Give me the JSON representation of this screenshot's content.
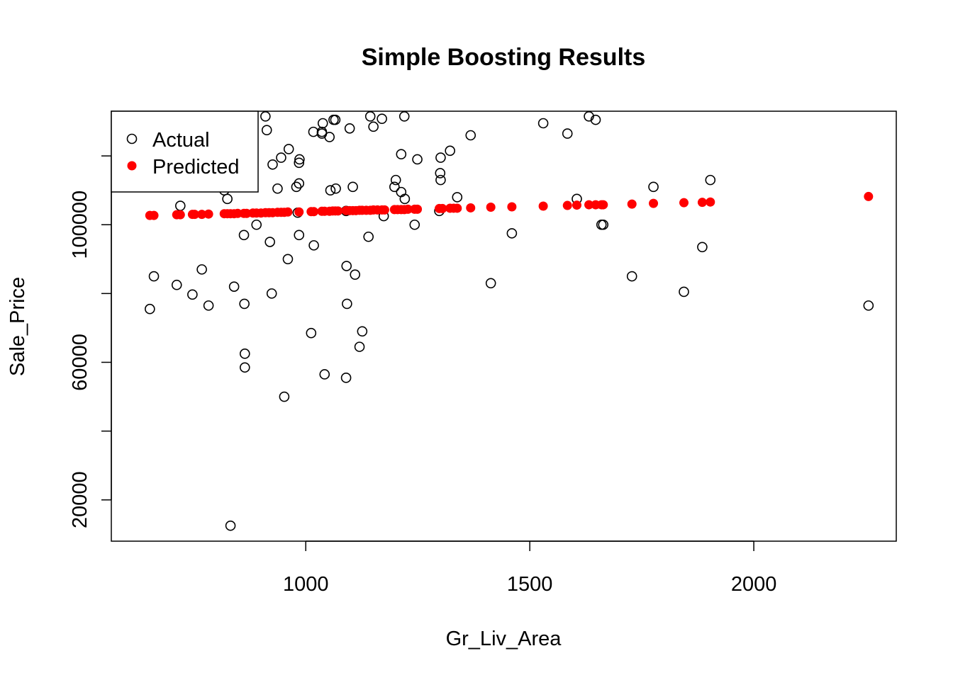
{
  "chart_data": {
    "type": "scatter",
    "title": "Simple Boosting Results",
    "xlabel": "Gr_Liv_Area",
    "ylabel": "Sale_Price",
    "xlim": [
      566,
      2318
    ],
    "ylim": [
      8000,
      133000
    ],
    "x_ticks": [
      1000,
      1500,
      2000
    ],
    "x_tick_labels": [
      "1000",
      "1500",
      "2000"
    ],
    "y_ticks": [
      20000,
      40000,
      60000,
      80000,
      100000,
      120000
    ],
    "y_tick_labels": [
      "20000",
      "",
      "60000",
      "",
      "100000",
      ""
    ],
    "grid": false,
    "legend": {
      "placement": "top-left",
      "entries": [
        {
          "label": "Actual",
          "marker": "open-circle",
          "color": "#000000"
        },
        {
          "label": "Predicted",
          "marker": "filled-circle",
          "color": "#ff0000"
        }
      ]
    },
    "series": [
      {
        "name": "Actual",
        "marker": "open-circle",
        "color": "#000000",
        "points": [
          [
            832,
            12500
          ],
          [
            652,
            75500
          ],
          [
            661,
            85000
          ],
          [
            712,
            82500
          ],
          [
            720,
            105500
          ],
          [
            747,
            79700
          ],
          [
            768,
            87000
          ],
          [
            783,
            76500
          ],
          [
            818,
            110000
          ],
          [
            825,
            107500
          ],
          [
            840,
            82000
          ],
          [
            862,
            97000
          ],
          [
            863,
            77000
          ],
          [
            864,
            62500
          ],
          [
            864,
            58500
          ],
          [
            890,
            100000
          ],
          [
            910,
            131500
          ],
          [
            913,
            127500
          ],
          [
            920,
            95000
          ],
          [
            924,
            80000
          ],
          [
            926,
            117500
          ],
          [
            937,
            110500
          ],
          [
            945,
            119500
          ],
          [
            952,
            50000
          ],
          [
            960,
            90000
          ],
          [
            962,
            122000
          ],
          [
            979,
            111000
          ],
          [
            982,
            103500
          ],
          [
            985,
            97000
          ],
          [
            985,
            118000
          ],
          [
            985,
            112000
          ],
          [
            986,
            119000
          ],
          [
            1017,
            127000
          ],
          [
            1018,
            94000
          ],
          [
            1012,
            68500
          ],
          [
            1036,
            127000
          ],
          [
            1036,
            126500
          ],
          [
            1038,
            129500
          ],
          [
            1042,
            56500
          ],
          [
            1053,
            125500
          ],
          [
            1055,
            110000
          ],
          [
            1062,
            130500
          ],
          [
            1066,
            130500
          ],
          [
            1067,
            110500
          ],
          [
            1090,
            104000
          ],
          [
            1090,
            55500
          ],
          [
            1091,
            88000
          ],
          [
            1092,
            77000
          ],
          [
            1098,
            128000
          ],
          [
            1105,
            111000
          ],
          [
            1110,
            85500
          ],
          [
            1120,
            64500
          ],
          [
            1126,
            69000
          ],
          [
            1140,
            96500
          ],
          [
            1144,
            131500
          ],
          [
            1151,
            128500
          ],
          [
            1170,
            130800
          ],
          [
            1174,
            102500
          ],
          [
            1198,
            111000
          ],
          [
            1201,
            113000
          ],
          [
            1213,
            120500
          ],
          [
            1213,
            109500
          ],
          [
            1221,
            107500
          ],
          [
            1220,
            131500
          ],
          [
            1243,
            100000
          ],
          [
            1249,
            119000
          ],
          [
            1298,
            104000
          ],
          [
            1300,
            115000
          ],
          [
            1301,
            119500
          ],
          [
            1301,
            113000
          ],
          [
            1322,
            121500
          ],
          [
            1338,
            108000
          ],
          [
            1368,
            126000
          ],
          [
            1413,
            83000
          ],
          [
            1460,
            97500
          ],
          [
            1530,
            129500
          ],
          [
            1584,
            126500
          ],
          [
            1605,
            107500
          ],
          [
            1632,
            131500
          ],
          [
            1647,
            130500
          ],
          [
            1660,
            100000
          ],
          [
            1664,
            100000
          ],
          [
            1728,
            85000
          ],
          [
            1776,
            111000
          ],
          [
            1844,
            80500
          ],
          [
            1885,
            93500
          ],
          [
            1903,
            113000
          ],
          [
            2256,
            76500
          ]
        ]
      },
      {
        "name": "Predicted",
        "marker": "filled-circle",
        "color": "#ff0000",
        "points": [
          [
            652,
            102700
          ],
          [
            661,
            102700
          ],
          [
            712,
            102900
          ],
          [
            720,
            102900
          ],
          [
            747,
            103000
          ],
          [
            752,
            103000
          ],
          [
            768,
            103000
          ],
          [
            783,
            103100
          ],
          [
            818,
            103200
          ],
          [
            825,
            103200
          ],
          [
            832,
            103200
          ],
          [
            840,
            103200
          ],
          [
            848,
            103300
          ],
          [
            862,
            103300
          ],
          [
            868,
            103300
          ],
          [
            882,
            103400
          ],
          [
            890,
            103400
          ],
          [
            900,
            103400
          ],
          [
            910,
            103500
          ],
          [
            918,
            103500
          ],
          [
            926,
            103500
          ],
          [
            937,
            103600
          ],
          [
            945,
            103600
          ],
          [
            952,
            103600
          ],
          [
            960,
            103700
          ],
          [
            985,
            103700
          ],
          [
            1012,
            103800
          ],
          [
            1018,
            103800
          ],
          [
            1036,
            103900
          ],
          [
            1042,
            103900
          ],
          [
            1053,
            103900
          ],
          [
            1060,
            104000
          ],
          [
            1066,
            104000
          ],
          [
            1072,
            104000
          ],
          [
            1090,
            104100
          ],
          [
            1098,
            104100
          ],
          [
            1105,
            104100
          ],
          [
            1112,
            104100
          ],
          [
            1120,
            104200
          ],
          [
            1126,
            104200
          ],
          [
            1135,
            104200
          ],
          [
            1144,
            104200
          ],
          [
            1151,
            104300
          ],
          [
            1160,
            104300
          ],
          [
            1170,
            104300
          ],
          [
            1176,
            104300
          ],
          [
            1198,
            104400
          ],
          [
            1205,
            104400
          ],
          [
            1213,
            104400
          ],
          [
            1220,
            104400
          ],
          [
            1228,
            104500
          ],
          [
            1243,
            104500
          ],
          [
            1249,
            104500
          ],
          [
            1298,
            104700
          ],
          [
            1305,
            104700
          ],
          [
            1322,
            104800
          ],
          [
            1330,
            104800
          ],
          [
            1338,
            104800
          ],
          [
            1368,
            104900
          ],
          [
            1413,
            105100
          ],
          [
            1460,
            105200
          ],
          [
            1530,
            105400
          ],
          [
            1584,
            105600
          ],
          [
            1605,
            105700
          ],
          [
            1632,
            105800
          ],
          [
            1647,
            105800
          ],
          [
            1660,
            105800
          ],
          [
            1664,
            105800
          ],
          [
            1728,
            106000
          ],
          [
            1776,
            106200
          ],
          [
            1844,
            106400
          ],
          [
            1885,
            106500
          ],
          [
            1903,
            106600
          ],
          [
            2256,
            108200
          ]
        ]
      }
    ]
  }
}
